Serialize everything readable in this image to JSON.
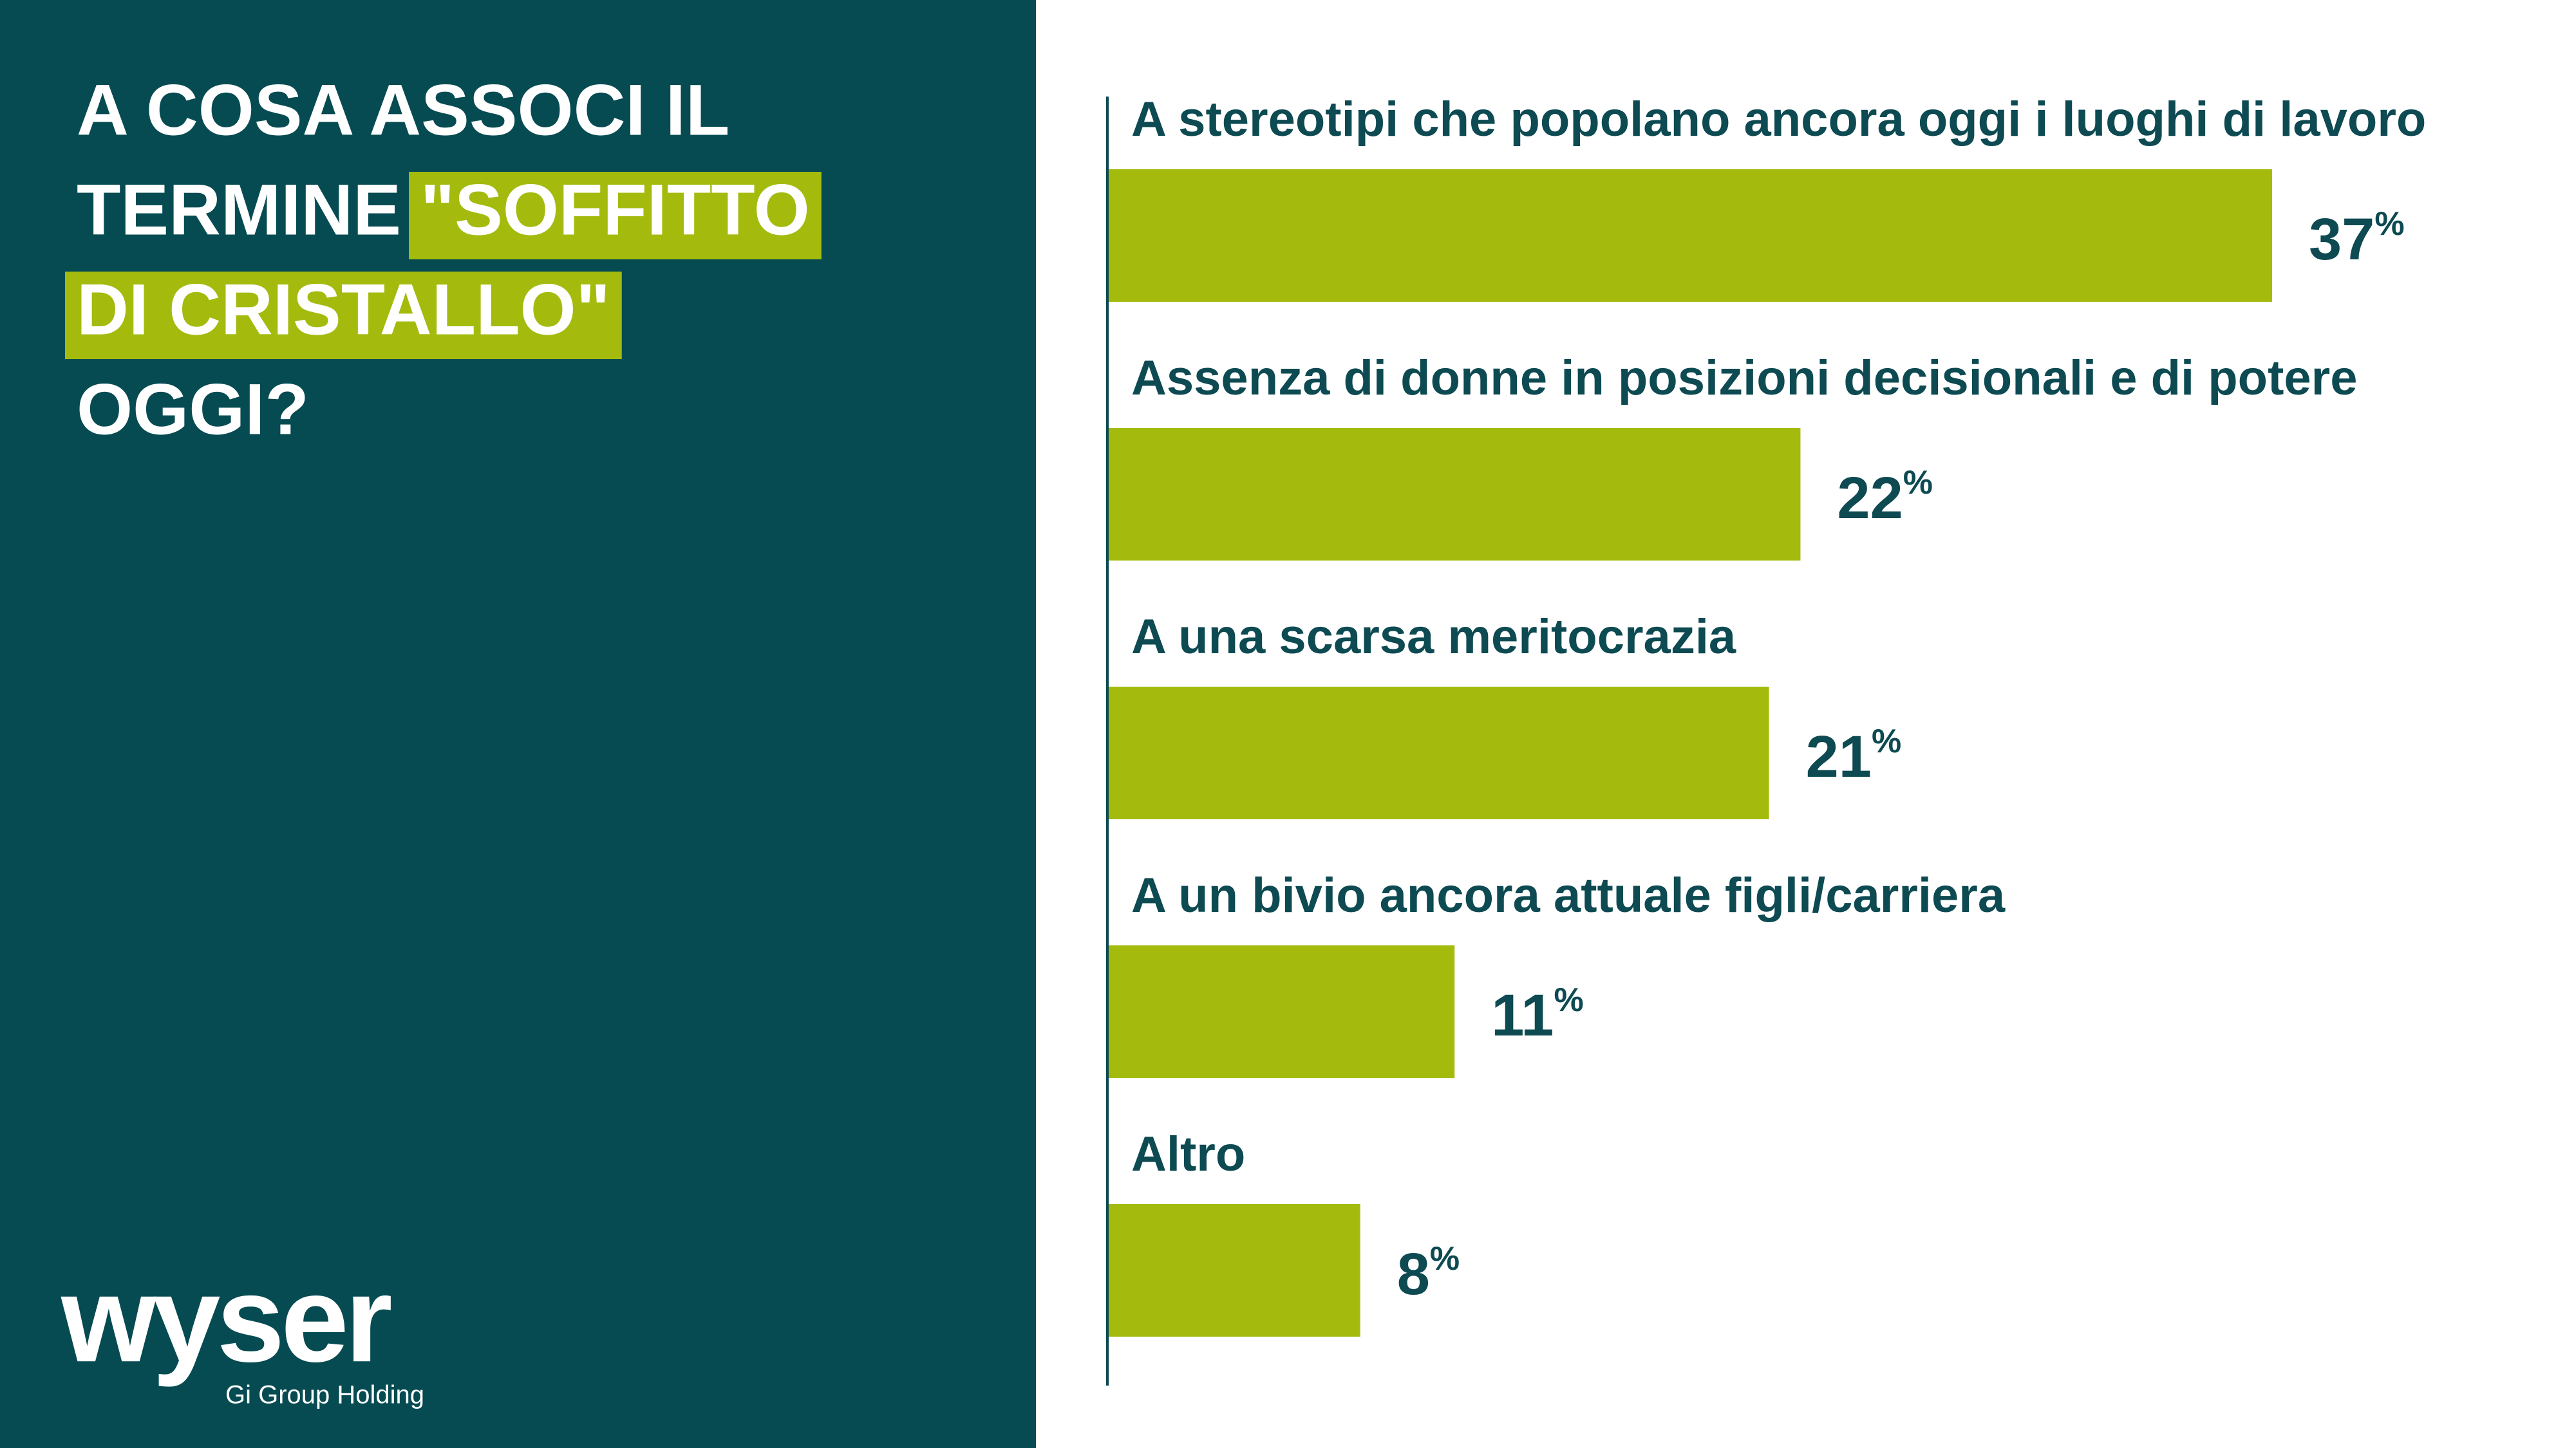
{
  "chart_data": {
    "type": "hbar",
    "title_lines": [
      {
        "text": "A COSA ASSOCI IL"
      },
      {
        "text": "TERMINE",
        "highlight": "\"SOFFITTO"
      },
      {
        "highlight": "DI CRISTALLO\""
      },
      {
        "text": "OGGI?"
      }
    ],
    "categories": [
      "A stereotipi che popolano ancora oggi i luoghi di lavoro",
      "Assenza di donne in posizioni decisionali e di potere",
      "A una scarsa meritocrazia",
      "A un bivio ancora attuale figli/carriera",
      "Altro"
    ],
    "values": [
      37,
      22,
      21,
      11,
      8
    ],
    "value_labels": [
      "37%",
      "22%",
      "21%",
      "11%",
      "8%"
    ],
    "color": "#a4bb0e",
    "logo": "wyser",
    "logo_subtitle": "Gi Group Holding"
  }
}
